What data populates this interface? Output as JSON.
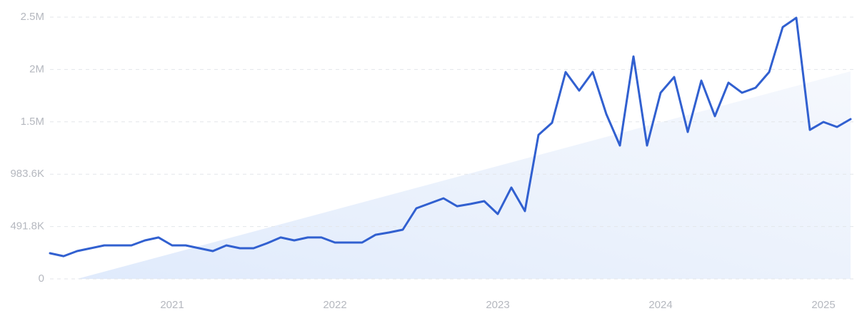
{
  "chart_data": {
    "type": "line",
    "categories": [
      null,
      null,
      null,
      null,
      null,
      null,
      null,
      null,
      null,
      "2021",
      null,
      null,
      null,
      null,
      null,
      null,
      null,
      null,
      null,
      null,
      null,
      "2022",
      null,
      null,
      null,
      null,
      null,
      null,
      null,
      null,
      null,
      null,
      null,
      "2023",
      null,
      null,
      null,
      null,
      null,
      null,
      null,
      null,
      null,
      null,
      null,
      "2024",
      null,
      null,
      null,
      null,
      null,
      null,
      null,
      null,
      null,
      null,
      null,
      "2025",
      null,
      null
    ],
    "series": [
      {
        "color": "#3160d0",
        "values": [
          241000,
          214000,
          261000,
          288000,
          315000,
          315000,
          315000,
          362000,
          389000,
          315000,
          315000,
          288000,
          261000,
          315000,
          288000,
          288000,
          335000,
          389000,
          362000,
          389000,
          389000,
          342000,
          342000,
          342000,
          415000,
          436000,
          462000,
          663000,
          710000,
          757000,
          683000,
          704000,
          730000,
          610000,
          858000,
          637000,
          1353000,
          1467000,
          1943000,
          1769000,
          1943000,
          1548000,
          1253000,
          2090000,
          1253000,
          1749000,
          1896000,
          1380000,
          1863000,
          1528000,
          1843000,
          1749000,
          1796000,
          1943000,
          2365000,
          2452000,
          1400000,
          1474000,
          1427000,
          1501000
        ]
      }
    ],
    "ylim": [
      0,
      2459000
    ],
    "yticks": [
      0,
      {
        "value": 491800,
        "label": "491.8K"
      },
      {
        "value": 983600,
        "label": "983.6K"
      },
      {
        "value": 1475400,
        "label": "1.5M"
      },
      {
        "value": 1967200,
        "label": "2M"
      },
      {
        "value": 2459000,
        "label": "2.5M"
      }
    ],
    "grid": true
  }
}
